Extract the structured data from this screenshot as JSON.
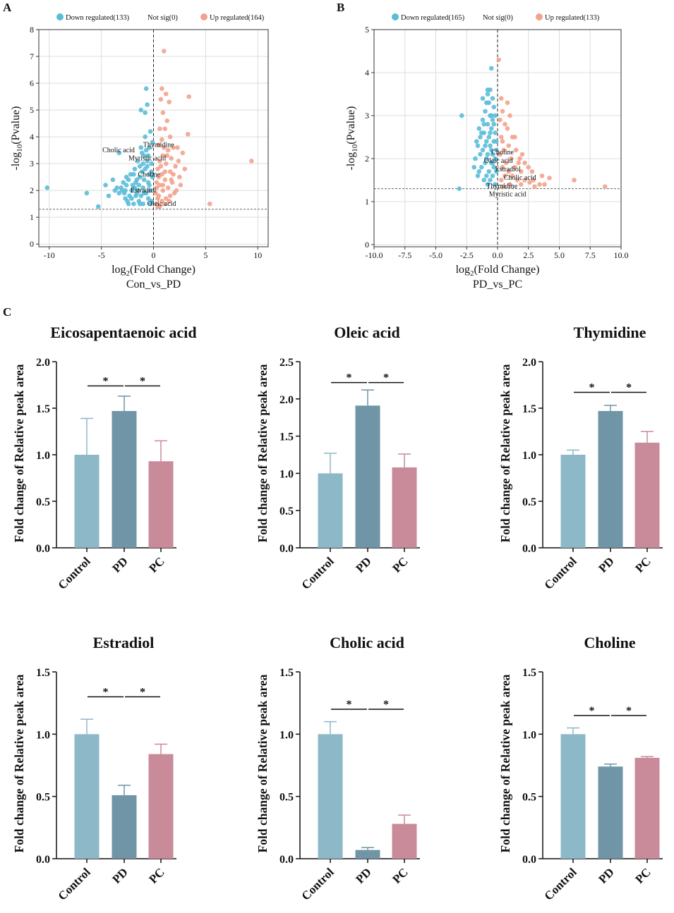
{
  "panel_letters": {
    "a": "A",
    "b": "B",
    "c": "C"
  },
  "colors": {
    "down": "#5bbcd8",
    "up": "#f2a38d",
    "control": "#8db8c8",
    "pd": "#6f95a6",
    "pc": "#c98a9a",
    "grid": "#dddddd",
    "threshold": "#666666"
  },
  "chart_data": [
    {
      "id": "A",
      "type": "scatter",
      "subtitle": "Con_vs_PD",
      "xlabel": "log2(Fold Change)",
      "ylabel": "-log10(Pvalue)",
      "xlim": [
        -11,
        11
      ],
      "ylim": [
        -0.1,
        8
      ],
      "xticks": [
        -10,
        -5,
        0,
        5,
        10
      ],
      "yticks": [
        0,
        1,
        2,
        3,
        4,
        5,
        6,
        7,
        8
      ],
      "threshold_y": 1.3,
      "legend": {
        "down": "Down regulated(133)",
        "notsig": "Not sig(0)",
        "up": "Up regulated(164)"
      },
      "annotations": [
        {
          "label": "Cholic acid",
          "x": -4.9,
          "y": 3.5
        },
        {
          "label": "Thymidine",
          "x": -1.0,
          "y": 3.7
        },
        {
          "label": "Myristic acid",
          "x": -2.4,
          "y": 3.2
        },
        {
          "label": "Choline",
          "x": -1.5,
          "y": 2.6
        },
        {
          "label": "Estradiol",
          "x": -2.2,
          "y": 2.0
        },
        {
          "label": "Oleic acid",
          "x": -0.6,
          "y": 1.5
        }
      ],
      "series_down": [
        [
          -10.2,
          2.1
        ],
        [
          -6.4,
          1.9
        ],
        [
          -5.3,
          1.4
        ],
        [
          -4.6,
          2.2
        ],
        [
          -4.3,
          1.8
        ],
        [
          -3.9,
          2.4
        ],
        [
          -3.7,
          2.0
        ],
        [
          -3.5,
          2.1
        ],
        [
          -3.3,
          1.9
        ],
        [
          -3.1,
          2.1
        ],
        [
          -2.9,
          2.3
        ],
        [
          -2.8,
          1.9
        ],
        [
          -2.7,
          2.0
        ],
        [
          -2.6,
          2.2
        ],
        [
          -2.5,
          1.6
        ],
        [
          -2.4,
          2.4
        ],
        [
          -2.3,
          1.8
        ],
        [
          -2.2,
          2.6
        ],
        [
          -2.1,
          1.7
        ],
        [
          -2.0,
          2.2
        ],
        [
          -1.9,
          1.5
        ],
        [
          -1.8,
          2.8
        ],
        [
          -1.7,
          2.3
        ],
        [
          -1.6,
          1.9
        ],
        [
          -1.5,
          3.1
        ],
        [
          -1.5,
          2.0
        ],
        [
          -1.4,
          1.6
        ],
        [
          -1.3,
          2.9
        ],
        [
          -1.3,
          2.5
        ],
        [
          -1.2,
          1.8
        ],
        [
          -1.1,
          3.4
        ],
        [
          -1.1,
          2.7
        ],
        [
          -1.0,
          2.1
        ],
        [
          -1.0,
          1.5
        ],
        [
          -0.9,
          3.3
        ],
        [
          -0.9,
          2.4
        ],
        [
          -0.8,
          4.9
        ],
        [
          -0.8,
          2.8
        ],
        [
          -0.7,
          1.9
        ],
        [
          -0.7,
          5.8
        ],
        [
          -0.6,
          5.2
        ],
        [
          -0.6,
          3.1
        ],
        [
          -0.5,
          2.3
        ],
        [
          -0.5,
          1.7
        ],
        [
          -0.4,
          3.6
        ],
        [
          -0.4,
          2.6
        ],
        [
          -0.3,
          2.0
        ],
        [
          -0.3,
          4.2
        ],
        [
          -0.2,
          3.0
        ],
        [
          -0.2,
          1.6
        ],
        [
          -0.1,
          2.5
        ],
        [
          -0.1,
          3.8
        ],
        [
          -1.9,
          2.6
        ],
        [
          -2.6,
          2.5
        ],
        [
          -3.3,
          3.4
        ],
        [
          -1.2,
          5.0
        ],
        [
          -0.8,
          4.0
        ],
        [
          -0.6,
          2.9
        ],
        [
          -0.4,
          2.2
        ],
        [
          -1.6,
          2.4
        ],
        [
          -2.1,
          2.0
        ],
        [
          -1.4,
          2.2
        ],
        [
          -1.0,
          3.0
        ],
        [
          -0.5,
          3.3
        ],
        [
          -0.2,
          2.7
        ],
        [
          -1.7,
          1.8
        ],
        [
          -2.4,
          1.5
        ],
        [
          -0.9,
          1.9
        ],
        [
          -0.3,
          1.5
        ],
        [
          -1.2,
          3.6
        ],
        [
          -0.7,
          3.5
        ],
        [
          -1.8,
          2.1
        ],
        [
          -2.7,
          1.7
        ],
        [
          -3.0,
          2.0
        ],
        [
          -1.3,
          1.5
        ]
      ],
      "series_up": [
        [
          1.0,
          7.2
        ],
        [
          0.8,
          5.8
        ],
        [
          1.2,
          5.6
        ],
        [
          0.7,
          5.4
        ],
        [
          1.5,
          5.3
        ],
        [
          3.4,
          5.5
        ],
        [
          0.9,
          4.9
        ],
        [
          1.3,
          4.6
        ],
        [
          0.6,
          4.3
        ],
        [
          1.1,
          4.3
        ],
        [
          3.3,
          4.1
        ],
        [
          1.6,
          4.0
        ],
        [
          0.8,
          3.9
        ],
        [
          1.9,
          3.6
        ],
        [
          2.3,
          3.6
        ],
        [
          0.5,
          3.7
        ],
        [
          1.4,
          3.5
        ],
        [
          0.9,
          3.3
        ],
        [
          2.8,
          3.4
        ],
        [
          1.7,
          3.2
        ],
        [
          0.6,
          3.1
        ],
        [
          1.2,
          3.0
        ],
        [
          2.1,
          2.9
        ],
        [
          0.4,
          2.8
        ],
        [
          1.6,
          2.7
        ],
        [
          0.8,
          2.6
        ],
        [
          2.5,
          2.5
        ],
        [
          1.1,
          2.4
        ],
        [
          0.3,
          2.3
        ],
        [
          1.8,
          2.3
        ],
        [
          0.6,
          2.2
        ],
        [
          1.4,
          2.1
        ],
        [
          2.2,
          2.0
        ],
        [
          0.9,
          2.0
        ],
        [
          0.2,
          1.9
        ],
        [
          1.6,
          1.8
        ],
        [
          0.5,
          1.8
        ],
        [
          1.2,
          1.7
        ],
        [
          0.8,
          1.6
        ],
        [
          0.3,
          1.5
        ],
        [
          1.0,
          1.5
        ],
        [
          0.6,
          1.4
        ],
        [
          0.4,
          1.4
        ],
        [
          1.5,
          1.6
        ],
        [
          5.4,
          1.5
        ],
        [
          9.4,
          3.1
        ],
        [
          2.6,
          2.2
        ],
        [
          3.0,
          2.8
        ],
        [
          1.9,
          2.6
        ],
        [
          0.7,
          2.9
        ],
        [
          1.3,
          3.3
        ],
        [
          0.5,
          2.5
        ],
        [
          2.0,
          1.9
        ],
        [
          1.1,
          2.7
        ],
        [
          0.3,
          2.1
        ],
        [
          0.9,
          2.2
        ],
        [
          1.7,
          2.4
        ],
        [
          0.4,
          1.7
        ],
        [
          2.4,
          3.1
        ],
        [
          1.0,
          3.6
        ]
      ]
    },
    {
      "id": "B",
      "type": "scatter",
      "subtitle": "PD_vs_PC",
      "xlabel": "log2(Fold Change)",
      "ylabel": "-log10(Pvalue)",
      "xlim": [
        -10,
        10
      ],
      "ylim": [
        -0.05,
        5
      ],
      "xticks": [
        -10.0,
        -7.5,
        -5.0,
        -2.5,
        0.0,
        2.5,
        5.0,
        7.5,
        10.0
      ],
      "yticks": [
        0,
        1,
        2,
        3,
        4,
        5
      ],
      "threshold_y": 1.3,
      "legend": {
        "down": "Down regulated(165)",
        "notsig": "Not sig(0)",
        "up": "Up regulated(133)"
      },
      "annotations": [
        {
          "label": "Choline",
          "x": -0.5,
          "y": 2.15
        },
        {
          "label": "Oleic acid",
          "x": -1.1,
          "y": 1.95
        },
        {
          "label": "Estradiol",
          "x": -0.2,
          "y": 1.75
        },
        {
          "label": "Cholic acid",
          "x": 0.5,
          "y": 1.56
        },
        {
          "label": "Thymidine",
          "x": -0.9,
          "y": 1.36
        },
        {
          "label": "Myristic acid",
          "x": -0.7,
          "y": 1.17
        }
      ],
      "series_down": [
        [
          -3.1,
          1.3
        ],
        [
          -2.9,
          3.0
        ],
        [
          -0.5,
          4.1
        ],
        [
          -0.6,
          3.6
        ],
        [
          -0.8,
          3.5
        ],
        [
          -0.4,
          3.4
        ],
        [
          -0.9,
          3.3
        ],
        [
          -0.3,
          3.2
        ],
        [
          -1.0,
          3.1
        ],
        [
          -0.6,
          3.0
        ],
        [
          -1.2,
          2.9
        ],
        [
          -0.4,
          2.9
        ],
        [
          -0.8,
          2.8
        ],
        [
          -1.5,
          2.7
        ],
        [
          -0.5,
          2.7
        ],
        [
          -1.1,
          2.6
        ],
        [
          -0.2,
          2.6
        ],
        [
          -0.7,
          2.5
        ],
        [
          -1.4,
          2.5
        ],
        [
          -0.3,
          2.4
        ],
        [
          -0.9,
          2.4
        ],
        [
          -1.6,
          2.3
        ],
        [
          -0.6,
          2.3
        ],
        [
          -0.1,
          2.2
        ],
        [
          -1.2,
          2.2
        ],
        [
          -0.4,
          2.1
        ],
        [
          -0.8,
          2.1
        ],
        [
          -1.8,
          2.0
        ],
        [
          -0.2,
          2.0
        ],
        [
          -1.0,
          1.9
        ],
        [
          -0.5,
          1.9
        ],
        [
          -1.3,
          1.8
        ],
        [
          -0.3,
          1.8
        ],
        [
          -0.7,
          1.7
        ],
        [
          -1.5,
          1.7
        ],
        [
          -0.1,
          1.7
        ],
        [
          -0.9,
          1.6
        ],
        [
          -0.4,
          1.6
        ],
        [
          -1.1,
          1.5
        ],
        [
          -0.6,
          1.5
        ],
        [
          -0.2,
          1.4
        ],
        [
          -0.8,
          1.4
        ],
        [
          -1.6,
          1.6
        ],
        [
          -1.9,
          1.8
        ],
        [
          -1.3,
          2.6
        ],
        [
          -0.5,
          3.0
        ],
        [
          -1.0,
          2.3
        ],
        [
          -0.3,
          2.8
        ],
        [
          -0.7,
          3.3
        ],
        [
          -1.2,
          3.4
        ],
        [
          -0.4,
          1.9
        ],
        [
          -0.9,
          2.0
        ],
        [
          -1.4,
          2.1
        ],
        [
          -0.1,
          2.4
        ],
        [
          -0.6,
          2.6
        ],
        [
          -1.1,
          2.8
        ],
        [
          -0.8,
          3.6
        ],
        [
          -0.2,
          3.0
        ],
        [
          -1.7,
          2.4
        ],
        [
          -0.5,
          2.2
        ]
      ],
      "series_up": [
        [
          0.1,
          4.3
        ],
        [
          0.3,
          3.4
        ],
        [
          0.8,
          3.3
        ],
        [
          0.4,
          3.1
        ],
        [
          1.0,
          3.0
        ],
        [
          0.2,
          2.9
        ],
        [
          0.6,
          2.8
        ],
        [
          1.2,
          2.5
        ],
        [
          0.3,
          2.5
        ],
        [
          0.9,
          2.3
        ],
        [
          1.5,
          2.2
        ],
        [
          0.5,
          2.2
        ],
        [
          1.8,
          2.0
        ],
        [
          0.2,
          2.1
        ],
        [
          1.1,
          2.0
        ],
        [
          2.2,
          1.9
        ],
        [
          0.7,
          1.9
        ],
        [
          1.4,
          1.8
        ],
        [
          2.5,
          1.8
        ],
        [
          0.4,
          1.8
        ],
        [
          1.9,
          1.7
        ],
        [
          0.9,
          1.7
        ],
        [
          2.8,
          1.7
        ],
        [
          1.2,
          1.6
        ],
        [
          3.6,
          1.6
        ],
        [
          0.6,
          1.6
        ],
        [
          2.2,
          1.5
        ],
        [
          4.2,
          1.55
        ],
        [
          1.6,
          1.5
        ],
        [
          0.3,
          1.5
        ],
        [
          2.6,
          1.45
        ],
        [
          3.4,
          1.4
        ],
        [
          1.0,
          1.4
        ],
        [
          1.9,
          1.4
        ],
        [
          3.0,
          1.35
        ],
        [
          0.5,
          1.35
        ],
        [
          6.2,
          1.5
        ],
        [
          8.7,
          1.35
        ],
        [
          1.4,
          2.5
        ],
        [
          0.8,
          2.7
        ],
        [
          2.0,
          2.1
        ],
        [
          0.4,
          2.4
        ],
        [
          1.7,
          1.9
        ],
        [
          2.9,
          1.5
        ],
        [
          3.8,
          1.4
        ]
      ]
    },
    {
      "id": "C1",
      "type": "bar",
      "title": "Eicosapentaenoic acid",
      "ylabel": "Fold change of Relative peak area",
      "categories": [
        "Control",
        "PD",
        "PC"
      ],
      "values": [
        1.0,
        1.47,
        0.93
      ],
      "errors": [
        0.39,
        0.16,
        0.22
      ],
      "ylim": [
        0,
        2.0
      ],
      "yticks": [
        "0.0",
        "0.5",
        "1.0",
        "1.5",
        "2.0"
      ],
      "sig": [
        {
          "from": 0,
          "to": 1,
          "label": "*",
          "y": 1.74
        },
        {
          "from": 1,
          "to": 2,
          "label": "*",
          "y": 1.74
        }
      ]
    },
    {
      "id": "C2",
      "type": "bar",
      "title": "Oleic acid",
      "ylabel": "Fold change of Relative peak area",
      "categories": [
        "Control",
        "PD",
        "PC"
      ],
      "values": [
        1.0,
        1.91,
        1.08
      ],
      "errors": [
        0.27,
        0.21,
        0.18
      ],
      "ylim": [
        0,
        2.5
      ],
      "yticks": [
        "0.0",
        "0.5",
        "1.0",
        "1.5",
        "2.0",
        "2.5"
      ],
      "sig": [
        {
          "from": 0,
          "to": 1,
          "label": "*",
          "y": 2.22
        },
        {
          "from": 1,
          "to": 2,
          "label": "*",
          "y": 2.22
        }
      ]
    },
    {
      "id": "C3",
      "type": "bar",
      "title": "Thymidine",
      "ylabel": "Fold change of Relative peak area",
      "categories": [
        "Control",
        "PD",
        "PC"
      ],
      "values": [
        1.0,
        1.47,
        1.13
      ],
      "errors": [
        0.05,
        0.06,
        0.12
      ],
      "ylim": [
        0,
        2.0
      ],
      "yticks": [
        "0.0",
        "0.5",
        "1.0",
        "1.5",
        "2.0"
      ],
      "sig": [
        {
          "from": 0,
          "to": 1,
          "label": "*",
          "y": 1.67
        },
        {
          "from": 1,
          "to": 2,
          "label": "*",
          "y": 1.67
        }
      ]
    },
    {
      "id": "C4",
      "type": "bar",
      "title": "Estradiol",
      "ylabel": "Fold change of Relative peak area",
      "categories": [
        "Control",
        "PD",
        "PC"
      ],
      "values": [
        1.0,
        0.51,
        0.84
      ],
      "errors": [
        0.12,
        0.08,
        0.08
      ],
      "ylim": [
        0,
        1.5
      ],
      "yticks": [
        "0.0",
        "0.5",
        "1.0",
        "1.5"
      ],
      "sig": [
        {
          "from": 0,
          "to": 1,
          "label": "*",
          "y": 1.3
        },
        {
          "from": 1,
          "to": 2,
          "label": "*",
          "y": 1.3
        }
      ]
    },
    {
      "id": "C5",
      "type": "bar",
      "title": "Cholic acid",
      "ylabel": "Fold change of Relative peak area",
      "categories": [
        "Control",
        "PD",
        "PC"
      ],
      "values": [
        1.0,
        0.07,
        0.28
      ],
      "errors": [
        0.1,
        0.02,
        0.07
      ],
      "ylim": [
        0,
        1.5
      ],
      "yticks": [
        "0.0",
        "0.5",
        "1.0",
        "1.5"
      ],
      "sig": [
        {
          "from": 0,
          "to": 1,
          "label": "*",
          "y": 1.2
        },
        {
          "from": 1,
          "to": 2,
          "label": "*",
          "y": 1.2
        }
      ]
    },
    {
      "id": "C6",
      "type": "bar",
      "title": "Choline",
      "ylabel": "Fold change of Relative peak area",
      "categories": [
        "Control",
        "PD",
        "PC"
      ],
      "values": [
        1.0,
        0.74,
        0.81
      ],
      "errors": [
        0.05,
        0.02,
        0.01
      ],
      "ylim": [
        0,
        1.5
      ],
      "yticks": [
        "0.0",
        "0.5",
        "1.0",
        "1.5"
      ],
      "sig": [
        {
          "from": 0,
          "to": 1,
          "label": "*",
          "y": 1.15
        },
        {
          "from": 1,
          "to": 2,
          "label": "*",
          "y": 1.15
        }
      ]
    }
  ]
}
